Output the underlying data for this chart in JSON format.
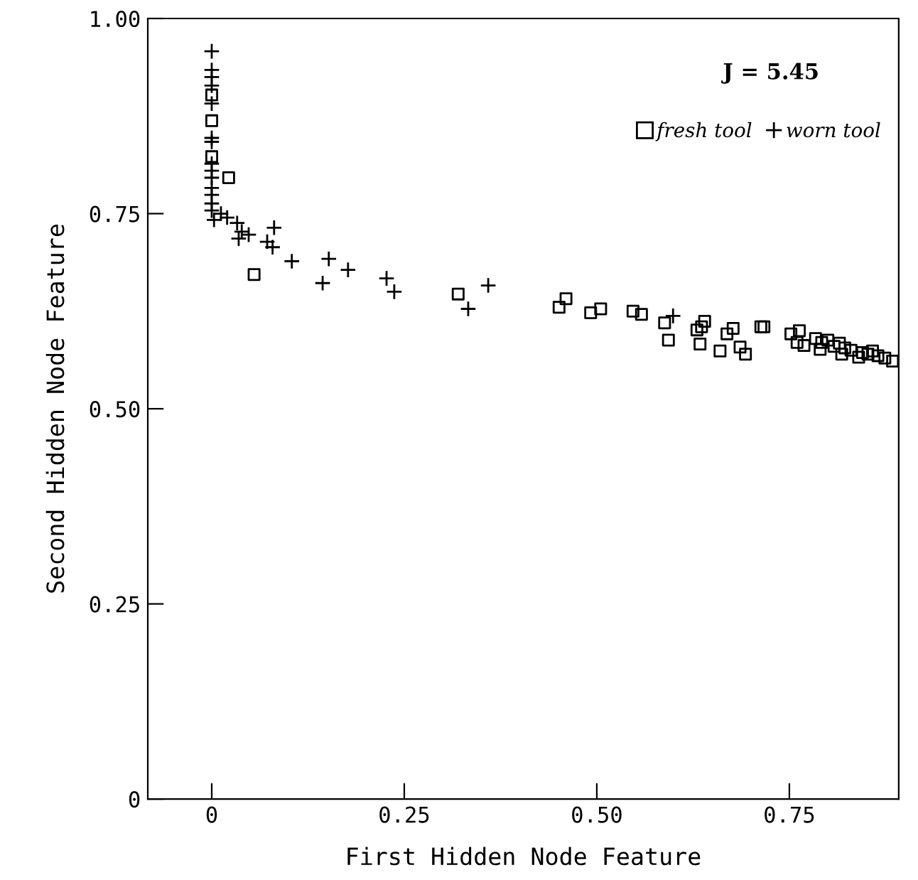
{
  "chart_data": {
    "type": "scatter",
    "xlabel": "First Hidden Node Feature",
    "ylabel": "Second Hidden Node Feature",
    "annotations": [
      "J = 5.45"
    ],
    "xlim": [
      -0.083,
      0.892
    ],
    "ylim": [
      0,
      1.0
    ],
    "xticks": [
      {
        "value": 0,
        "label": "0"
      },
      {
        "value": 0.25,
        "label": "0.25"
      },
      {
        "value": 0.5,
        "label": "0.50"
      },
      {
        "value": 0.75,
        "label": "0.75"
      }
    ],
    "yticks": [
      {
        "value": 0,
        "label": "0"
      },
      {
        "value": 0.25,
        "label": "0.25"
      },
      {
        "value": 0.5,
        "label": "0.50"
      },
      {
        "value": 0.75,
        "label": "0.75"
      },
      {
        "value": 1.0,
        "label": "1.00"
      }
    ],
    "grid": false,
    "legend": "top right",
    "series": [
      {
        "name": "fresh tool",
        "color": "#000000",
        "marker": "square",
        "x": [
          0,
          0,
          0,
          0.022,
          0.055,
          0.32,
          0.451,
          0.46,
          0.492,
          0.505,
          0.547,
          0.558,
          0.588,
          0.593,
          0.63,
          0.64,
          0.636,
          0.634,
          0.677,
          0.669,
          0.66,
          0.686,
          0.693,
          0.713,
          0.717,
          0.752,
          0.763,
          0.76,
          0.769,
          0.784,
          0.792,
          0.8,
          0.808,
          0.815,
          0.822,
          0.83,
          0.837,
          0.845,
          0.852,
          0.858,
          0.865,
          0.79,
          0.818,
          0.84,
          0.874,
          0.884
        ],
        "values": [
          0.902,
          0.869,
          0.823,
          0.796,
          0.672,
          0.647,
          0.63,
          0.641,
          0.623,
          0.628,
          0.625,
          0.621,
          0.61,
          0.588,
          0.601,
          0.612,
          0.605,
          0.583,
          0.603,
          0.596,
          0.574,
          0.579,
          0.57,
          0.605,
          0.605,
          0.596,
          0.6,
          0.585,
          0.581,
          0.59,
          0.585,
          0.588,
          0.58,
          0.584,
          0.578,
          0.575,
          null,
          0.572,
          0.57,
          0.574,
          0.568,
          0.576,
          0.57,
          0.566,
          0.565,
          0.561
        ]
      },
      {
        "name": "worn tool",
        "color": "#000000",
        "marker": "cross",
        "x": [
          0,
          0,
          0,
          0,
          0,
          0,
          0,
          0,
          0,
          0,
          0,
          0,
          0,
          0,
          0.003,
          0.012,
          0.02,
          0.033,
          0.039,
          0.035,
          0.048,
          0.081,
          0.072,
          0.079,
          0.104,
          0.152,
          0.144,
          0.177,
          0.227,
          0.237,
          0.333,
          0.359,
          0.599
        ],
        "values": [
          0.958,
          0.934,
          0.925,
          0.914,
          0.891,
          0.847,
          0.842,
          0.814,
          0.805,
          0.796,
          0.783,
          0.774,
          0.763,
          0.754,
          0.742,
          0.75,
          0.745,
          0.738,
          0.727,
          0.718,
          0.723,
          0.732,
          0.714,
          0.707,
          0.689,
          0.692,
          0.661,
          0.678,
          0.667,
          0.65,
          0.628,
          0.658,
          0.619
        ]
      }
    ]
  }
}
